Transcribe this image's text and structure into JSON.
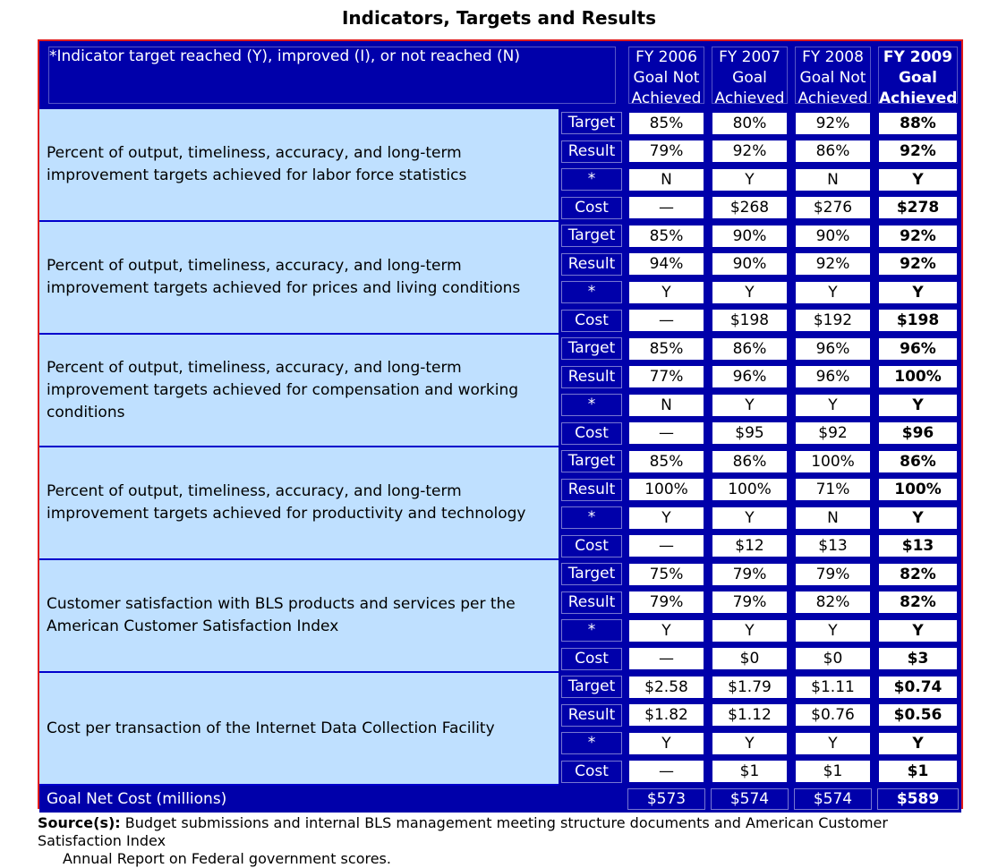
{
  "title": "Indicators, Targets and Results",
  "header": {
    "description": "*Indicator target reached (Y), improved (I), or not  reached (N)",
    "years": [
      {
        "year": "FY 2006",
        "status_line1": "Goal Not",
        "status_line2": "Achieved"
      },
      {
        "year": "FY 2007",
        "status_line1": "Goal",
        "status_line2": "Achieved"
      },
      {
        "year": "FY 2008",
        "status_line1": "Goal Not",
        "status_line2": "Achieved"
      },
      {
        "year": "FY 2009",
        "status_line1": "Goal",
        "status_line2": "Achieved"
      }
    ]
  },
  "indicators": [
    {
      "label": "Percent of output, timeliness, accuracy, and long-term improvement targets achieved for labor force statistics",
      "rows": [
        {
          "type": "Target",
          "values": [
            "85%",
            "80%",
            "92%",
            "88%"
          ]
        },
        {
          "type": "Result",
          "values": [
            "79%",
            "92%",
            "86%",
            "92%"
          ]
        },
        {
          "type": "*",
          "values": [
            "N",
            "Y",
            "N",
            "Y"
          ]
        },
        {
          "type": "Cost",
          "values": [
            "—",
            "$268",
            "$276",
            "$278"
          ]
        }
      ]
    },
    {
      "label": "Percent of output, timeliness, accuracy, and long-term improvement targets achieved for prices and living conditions",
      "rows": [
        {
          "type": "Target",
          "values": [
            "85%",
            "90%",
            "90%",
            "92%"
          ]
        },
        {
          "type": "Result",
          "values": [
            "94%",
            "90%",
            "92%",
            "92%"
          ]
        },
        {
          "type": "*",
          "values": [
            "Y",
            "Y",
            "Y",
            "Y"
          ]
        },
        {
          "type": "Cost",
          "values": [
            "—",
            "$198",
            "$192",
            "$198"
          ]
        }
      ]
    },
    {
      "label": "Percent of output, timeliness, accuracy, and long-term improvement targets achieved for compensation and working conditions",
      "rows": [
        {
          "type": "Target",
          "values": [
            "85%",
            "86%",
            "96%",
            "96%"
          ]
        },
        {
          "type": "Result",
          "values": [
            "77%",
            "96%",
            "96%",
            "100%"
          ]
        },
        {
          "type": "*",
          "values": [
            "N",
            "Y",
            "Y",
            "Y"
          ]
        },
        {
          "type": "Cost",
          "values": [
            "—",
            "$95",
            "$92",
            "$96"
          ]
        }
      ]
    },
    {
      "label": "Percent of output, timeliness, accuracy, and long-term improvement targets achieved for productivity and technology",
      "rows": [
        {
          "type": "Target",
          "values": [
            "85%",
            "86%",
            "100%",
            "86%"
          ]
        },
        {
          "type": "Result",
          "values": [
            "100%",
            "100%",
            "71%",
            "100%"
          ]
        },
        {
          "type": "*",
          "values": [
            "Y",
            "Y",
            "N",
            "Y"
          ]
        },
        {
          "type": "Cost",
          "values": [
            "—",
            "$12",
            "$13",
            "$13"
          ]
        }
      ]
    },
    {
      "label": "Customer satisfaction with BLS products and services per the American Customer Satisfaction Index",
      "rows": [
        {
          "type": "Target",
          "values": [
            "75%",
            "79%",
            "79%",
            "82%"
          ]
        },
        {
          "type": "Result",
          "values": [
            "79%",
            "79%",
            "82%",
            "82%"
          ]
        },
        {
          "type": "*",
          "values": [
            "Y",
            "Y",
            "Y",
            "Y"
          ]
        },
        {
          "type": "Cost",
          "values": [
            "—",
            "$0",
            "$0",
            "$3"
          ]
        }
      ]
    },
    {
      "label": "Cost per transaction of the Internet Data Collection Facility",
      "rows": [
        {
          "type": "Target",
          "values": [
            "$2.58",
            "$1.79",
            "$1.11",
            "$0.74"
          ]
        },
        {
          "type": "Result",
          "values": [
            "$1.82",
            "$1.12",
            "$0.76",
            "$0.56"
          ]
        },
        {
          "type": "*",
          "values": [
            "Y",
            "Y",
            "Y",
            "Y"
          ]
        },
        {
          "type": "Cost",
          "values": [
            "—",
            "$1",
            "$1",
            "$1"
          ]
        }
      ]
    }
  ],
  "footer": {
    "label": "Goal Net Cost (millions)",
    "values": [
      "$573",
      "$574",
      "$574",
      "$589"
    ]
  },
  "source": {
    "label": "Source(s):",
    "line1": " Budget submissions and internal BLS management meeting structure documents and American Customer Satisfaction Index",
    "line2": "Annual Report on Federal government scores."
  },
  "colors": {
    "header_bg": "#0000aa",
    "label_bg": "#bfe0ff",
    "border": "#e01a1a"
  }
}
